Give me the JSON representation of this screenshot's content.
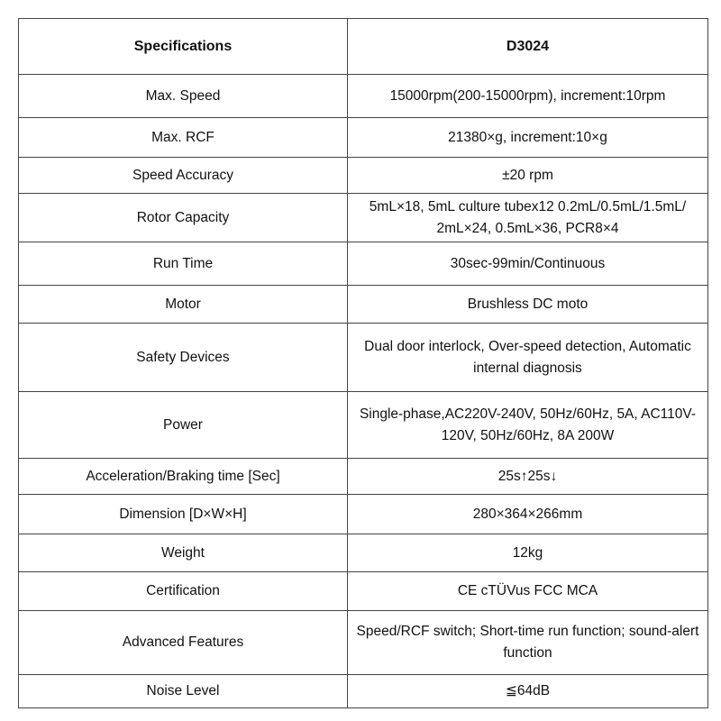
{
  "table": {
    "header": [
      "Specifications",
      "D3024"
    ],
    "rows": [
      [
        "Max. Speed",
        "15000rpm(200-15000rpm), increment:10rpm"
      ],
      [
        "Max. RCF",
        "21380×g,  increment:10×g"
      ],
      [
        "Speed Accuracy",
        "±20 rpm"
      ],
      [
        "Rotor Capacity",
        "5mL×18, 5mL culture tubex12 0.2mL/0.5mL/1.5mL/ 2mL×24, 0.5mL×36, PCR8×4"
      ],
      [
        "Run Time",
        "30sec-99min/Continuous"
      ],
      [
        "Motor",
        "Brushless DC moto"
      ],
      [
        "Safety Devices",
        "Dual door interlock, Over-speed  detection, Automatic internal diagnosis"
      ],
      [
        "Power",
        "Single-phase,AC220V-240V, 50Hz/60Hz, 5A, AC110V-120V, 50Hz/60Hz, 8A 200W"
      ],
      [
        "Acceleration/Braking time [Sec]",
        "25s↑25s↓"
      ],
      [
        "Dimension [D×W×H]",
        "280×364×266mm"
      ],
      [
        "Weight",
        "12kg"
      ],
      [
        "Certification",
        "CE cTÜVus FCC MCA"
      ],
      [
        "Advanced Features",
        "Speed/RCF switch; Short-time run function; sound-alert function"
      ],
      [
        "Noise Level",
        "≦64dB"
      ]
    ]
  }
}
